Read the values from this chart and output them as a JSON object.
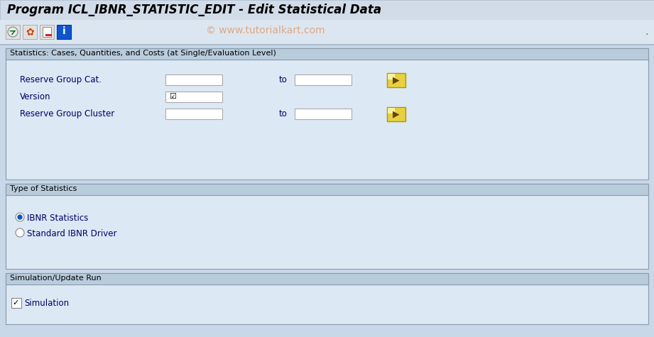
{
  "title": "Program ICL_IBNR_STATISTIC_EDIT - Edit Statistical Data",
  "title_bg": "#d2dce8",
  "toolbar_bg": "#dce6f0",
  "body_bg": "#c8d8e8",
  "panel_bg": "#dce8f4",
  "section_header_bg": "#b8ccdc",
  "section_border": "#8899aa",
  "watermark": "© www.tutorialkart.com",
  "watermark_color": "#e0a882",
  "section1_title": "Statistics: Cases, Quantities, and Costs (at Single/Evaluation Level)",
  "section2_title": "Type of Statistics",
  "section3_title": "Simulation/Update Run",
  "field1_label": "Reserve Group Cat.",
  "field2_label": "Version",
  "field3_label": "Reserve Group Cluster",
  "to_label": "to",
  "radio1_label": "IBNR Statistics",
  "radio2_label": "Standard IBNR Driver",
  "checkbox_label": "Simulation",
  "label_color": "#000066",
  "field_bg": "#ffffff",
  "field_border": "#aaaaaa",
  "arrow_btn_bg": "#e8d040",
  "arrow_btn_border": "#aa9900",
  "version_check": "☑",
  "checkbox_checked": "☑"
}
